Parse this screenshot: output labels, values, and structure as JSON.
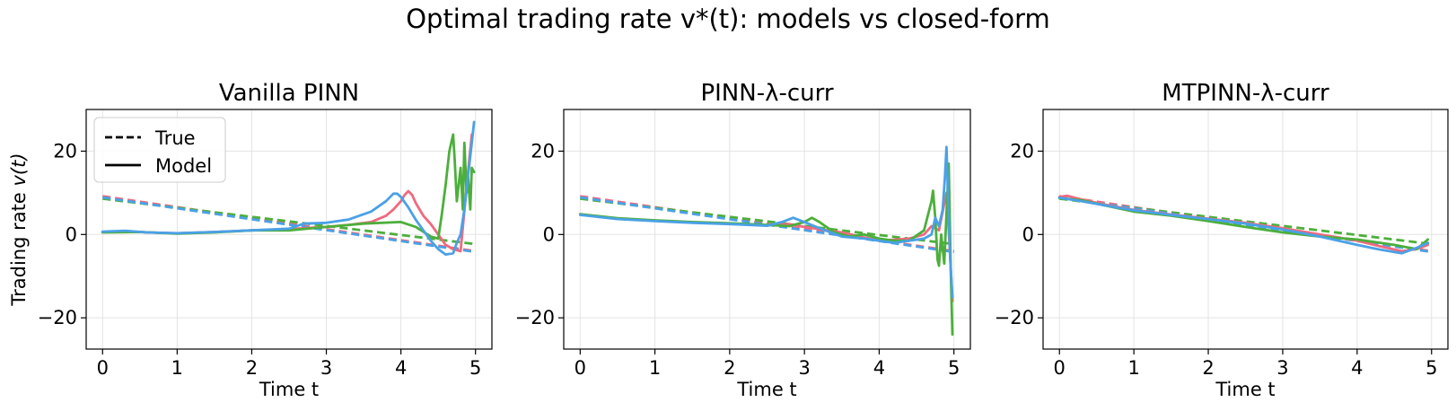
{
  "figure": {
    "suptitle": "Optimal trading rate v*(t): models vs closed-form",
    "series_colors": [
      "#f0697f",
      "#4caf3b",
      "#4aa1e6"
    ]
  },
  "chart_data": [
    {
      "type": "line",
      "title": "Vanilla PINN",
      "xlabel": "Time t",
      "ylabel": "Trading rate v(t)",
      "xlim": [
        -0.22,
        5.22
      ],
      "ylim": [
        -27.5,
        30
      ],
      "xticks": [
        0,
        1,
        2,
        3,
        4,
        5
      ],
      "yticks": [
        -20,
        0,
        20
      ],
      "grid": true,
      "legend": {
        "position": "upper-left",
        "entries": [
          {
            "label": "True",
            "style": "dashed"
          },
          {
            "label": "Model",
            "style": "solid"
          }
        ]
      },
      "series": [
        {
          "color": "#f0697f",
          "style": "dashed",
          "x": [
            0,
            5
          ],
          "y": [
            9.2,
            -4.0
          ]
        },
        {
          "color": "#4caf3b",
          "style": "dashed",
          "x": [
            0,
            5
          ],
          "y": [
            8.6,
            -2.3
          ]
        },
        {
          "color": "#4aa1e6",
          "style": "dashed",
          "x": [
            0,
            5
          ],
          "y": [
            8.9,
            -4.2
          ]
        },
        {
          "color": "#f0697f",
          "style": "solid",
          "x": [
            0,
            0.3,
            0.6,
            1.0,
            1.5,
            2.0,
            2.5,
            3.0,
            3.3,
            3.6,
            3.8,
            3.9,
            4.0,
            4.05,
            4.1,
            4.15,
            4.2,
            4.3,
            4.4,
            4.5,
            4.6,
            4.7,
            4.8,
            4.9,
            4.95
          ],
          "y": [
            0.6,
            0.8,
            0.5,
            0.3,
            0.6,
            1.0,
            1.3,
            1.8,
            2.3,
            3.0,
            4.5,
            6.0,
            8.0,
            9.5,
            10.4,
            9.5,
            7.5,
            4.5,
            2.5,
            0.0,
            -2.5,
            -3.5,
            -4.0,
            15.0,
            24.0
          ]
        },
        {
          "color": "#4caf3b",
          "style": "solid",
          "x": [
            0,
            0.5,
            1.0,
            1.5,
            2.0,
            2.5,
            3.0,
            3.5,
            4.0,
            4.2,
            4.4,
            4.5,
            4.55,
            4.6,
            4.65,
            4.7,
            4.72,
            4.75,
            4.8,
            4.83,
            4.85,
            4.88,
            4.9,
            4.93,
            4.95,
            4.98
          ],
          "y": [
            0.5,
            0.6,
            0.2,
            0.5,
            1.0,
            1.0,
            1.8,
            2.6,
            3.0,
            1.8,
            -0.5,
            -1.0,
            5.0,
            12.0,
            20.0,
            24.0,
            18.0,
            8.0,
            16.0,
            6.0,
            22.0,
            10.0,
            14.0,
            6.0,
            16.0,
            15.0
          ]
        },
        {
          "color": "#4aa1e6",
          "style": "solid",
          "x": [
            0,
            0.3,
            0.6,
            1.0,
            1.5,
            2.0,
            2.5,
            2.7,
            3.0,
            3.3,
            3.6,
            3.8,
            3.9,
            3.95,
            4.0,
            4.1,
            4.2,
            4.3,
            4.4,
            4.5,
            4.6,
            4.7,
            4.75,
            4.8,
            4.85,
            4.9,
            4.95,
            4.98
          ],
          "y": [
            0.7,
            0.9,
            0.5,
            0.3,
            0.6,
            1.0,
            1.4,
            2.6,
            2.8,
            3.6,
            5.5,
            8.0,
            9.8,
            9.8,
            9.0,
            6.5,
            3.5,
            1.0,
            -1.5,
            -3.5,
            -4.8,
            -4.5,
            -2.0,
            0.0,
            6.0,
            14.0,
            22.0,
            27.0
          ]
        }
      ]
    },
    {
      "type": "line",
      "title": "PINN-λ-curr",
      "xlabel": "Time t",
      "ylabel": "",
      "xlim": [
        -0.22,
        5.22
      ],
      "ylim": [
        -27.5,
        30
      ],
      "xticks": [
        0,
        1,
        2,
        3,
        4,
        5
      ],
      "yticks": [
        -20,
        0,
        20
      ],
      "grid": true,
      "series": [
        {
          "color": "#f0697f",
          "style": "dashed",
          "x": [
            0,
            5
          ],
          "y": [
            9.2,
            -4.0
          ]
        },
        {
          "color": "#4caf3b",
          "style": "dashed",
          "x": [
            0,
            5
          ],
          "y": [
            8.6,
            -2.3
          ]
        },
        {
          "color": "#4aa1e6",
          "style": "dashed",
          "x": [
            0,
            5
          ],
          "y": [
            8.9,
            -4.2
          ]
        },
        {
          "color": "#f0697f",
          "style": "solid",
          "x": [
            0,
            0.5,
            1.0,
            1.5,
            2.0,
            2.5,
            2.8,
            3.0,
            3.5,
            4.0,
            4.4,
            4.6,
            4.7,
            4.8,
            4.9,
            4.95,
            4.98
          ],
          "y": [
            4.8,
            3.8,
            3.3,
            2.9,
            2.6,
            2.2,
            2.5,
            1.8,
            0.5,
            -1.5,
            -1.0,
            0.0,
            2.0,
            1.0,
            10.0,
            -5.0,
            -16.0
          ]
        },
        {
          "color": "#4caf3b",
          "style": "solid",
          "x": [
            0,
            0.5,
            1.0,
            1.5,
            2.0,
            2.5,
            2.8,
            3.0,
            3.1,
            3.2,
            3.4,
            3.6,
            3.8,
            4.0,
            4.2,
            4.4,
            4.6,
            4.7,
            4.72,
            4.75,
            4.78,
            4.8,
            4.83,
            4.87,
            4.9,
            4.93,
            4.96,
            4.98
          ],
          "y": [
            4.9,
            3.9,
            3.4,
            3.0,
            2.7,
            2.3,
            2.0,
            3.0,
            4.0,
            3.0,
            0.5,
            -0.5,
            0.0,
            -1.0,
            -1.5,
            -1.5,
            1.0,
            8.0,
            10.5,
            4.0,
            -6.0,
            -7.5,
            0.0,
            -7.0,
            5.0,
            17.0,
            -10.0,
            -24.0
          ]
        },
        {
          "color": "#4aa1e6",
          "style": "solid",
          "x": [
            0,
            0.5,
            1.0,
            1.5,
            2.0,
            2.5,
            2.7,
            2.85,
            3.0,
            3.2,
            3.5,
            3.8,
            4.0,
            4.2,
            4.4,
            4.6,
            4.7,
            4.75,
            4.8,
            4.85,
            4.88,
            4.9,
            4.92,
            4.95,
            4.98
          ],
          "y": [
            4.7,
            3.7,
            3.2,
            2.8,
            2.5,
            2.1,
            3.0,
            4.0,
            3.0,
            1.5,
            -0.5,
            -1.0,
            -1.5,
            -2.0,
            -1.5,
            -1.0,
            0.0,
            4.0,
            2.0,
            6.0,
            14.0,
            21.0,
            10.0,
            -6.0,
            -15.0
          ]
        }
      ]
    },
    {
      "type": "line",
      "title": "MTPINN-λ-curr",
      "xlabel": "Time t",
      "ylabel": "",
      "xlim": [
        -0.22,
        5.22
      ],
      "ylim": [
        -27.5,
        30
      ],
      "xticks": [
        0,
        1,
        2,
        3,
        4,
        5
      ],
      "yticks": [
        -20,
        0,
        20
      ],
      "grid": true,
      "series": [
        {
          "color": "#f0697f",
          "style": "dashed",
          "x": [
            0,
            5
          ],
          "y": [
            9.2,
            -4.0
          ]
        },
        {
          "color": "#4caf3b",
          "style": "dashed",
          "x": [
            0,
            5
          ],
          "y": [
            8.6,
            -2.3
          ]
        },
        {
          "color": "#4aa1e6",
          "style": "dashed",
          "x": [
            0,
            5
          ],
          "y": [
            8.9,
            -4.2
          ]
        },
        {
          "color": "#f0697f",
          "style": "solid",
          "x": [
            0,
            0.1,
            0.3,
            0.6,
            1.0,
            1.5,
            2.0,
            2.5,
            3.0,
            3.5,
            4.0,
            4.3,
            4.6,
            4.8,
            4.95
          ],
          "y": [
            9.0,
            9.3,
            8.4,
            7.2,
            5.9,
            4.8,
            3.8,
            2.8,
            1.5,
            0.0,
            -1.5,
            -2.8,
            -4.0,
            -3.5,
            -2.5
          ]
        },
        {
          "color": "#4caf3b",
          "style": "solid",
          "x": [
            0,
            0.3,
            0.6,
            1.0,
            1.5,
            2.0,
            2.5,
            3.0,
            3.5,
            4.0,
            4.5,
            4.8,
            4.95
          ],
          "y": [
            8.7,
            8.2,
            7.0,
            5.5,
            4.5,
            3.2,
            1.8,
            0.5,
            -0.5,
            -1.2,
            -2.5,
            -3.5,
            -1.2
          ]
        },
        {
          "color": "#4aa1e6",
          "style": "solid",
          "x": [
            0,
            0.3,
            0.6,
            1.0,
            1.5,
            2.0,
            2.5,
            3.0,
            3.5,
            4.0,
            4.3,
            4.6,
            4.8,
            4.95
          ],
          "y": [
            8.8,
            8.0,
            7.0,
            5.8,
            4.7,
            3.7,
            2.6,
            1.2,
            -0.5,
            -2.5,
            -3.6,
            -4.5,
            -3.2,
            -2.0
          ]
        }
      ]
    }
  ]
}
